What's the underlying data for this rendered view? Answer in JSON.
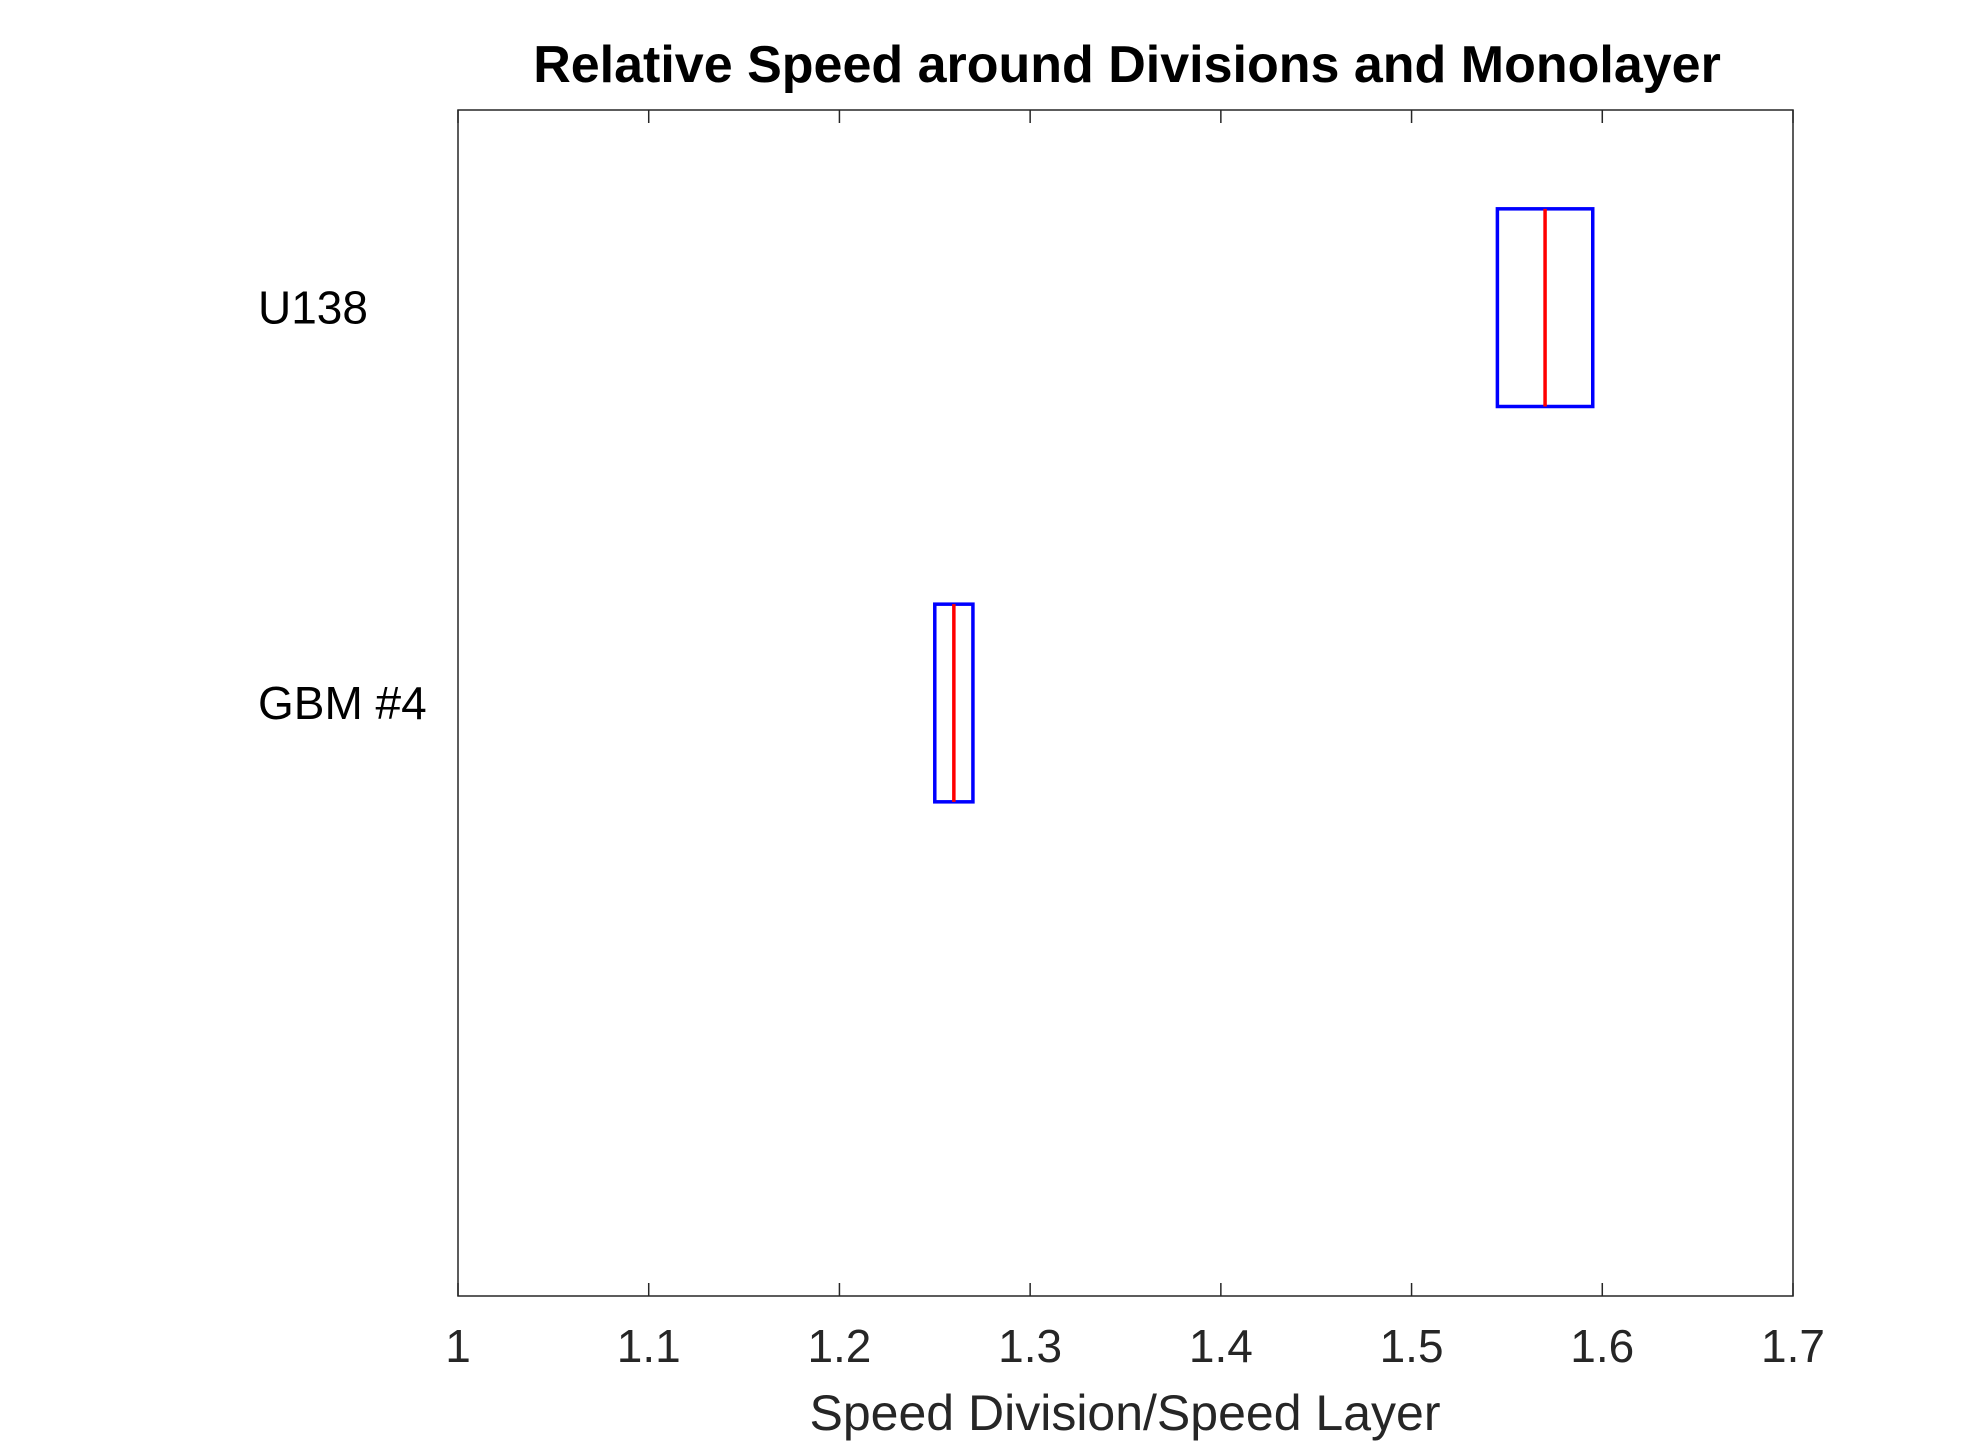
{
  "chart_data": {
    "type": "boxplot",
    "orientation": "horizontal",
    "title": "Relative Speed around Divisions and Monolayer",
    "xlabel": "Speed Division/Speed Layer",
    "ylabel": "",
    "xlim": [
      1,
      1.7
    ],
    "xticks": [
      1,
      1.1,
      1.2,
      1.3,
      1.4,
      1.5,
      1.6,
      1.7
    ],
    "xtick_labels": [
      "1",
      "1.1",
      "1.2",
      "1.3",
      "1.4",
      "1.5",
      "1.6",
      "1.7"
    ],
    "grid": false,
    "categories": [
      "U138",
      "GBM #4"
    ],
    "boxes": [
      {
        "label": "U138",
        "q1": 1.545,
        "median": 1.57,
        "q3": 1.595
      },
      {
        "label": "GBM #4",
        "q1": 1.25,
        "median": 1.26,
        "q3": 1.27
      }
    ],
    "colors": {
      "box": "#0000ff",
      "median": "#ff0000",
      "axis": "#262626"
    }
  }
}
